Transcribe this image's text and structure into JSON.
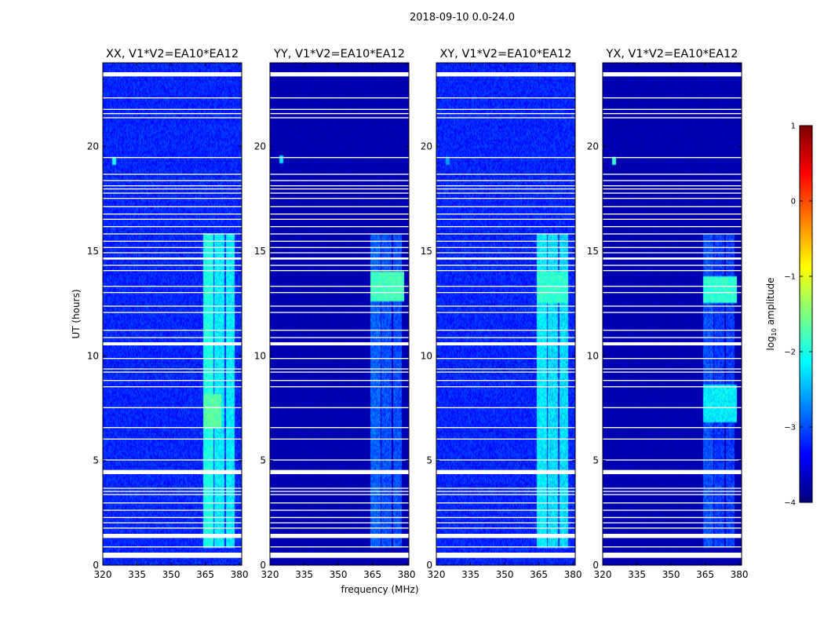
{
  "chart_data": {
    "type": "heatmap",
    "suptitle": "2018-09-10 0.0-24.0",
    "xlabel": "frequency (MHz)",
    "ylabel": "UT (hours)",
    "xlim": [
      320,
      381
    ],
    "ylim": [
      0,
      24
    ],
    "xticks": [
      320,
      335,
      350,
      365,
      380
    ],
    "yticks": [
      0,
      5,
      10,
      15,
      20
    ],
    "colorbar": {
      "label": "log10 amplitude",
      "label_base": "log",
      "label_sub": "10",
      "label_rest": " amplitude",
      "range": [
        -4,
        1
      ],
      "ticks": [
        -4,
        -3,
        -2,
        -1,
        0,
        1
      ],
      "tick_labels": [
        "−4",
        "−3",
        "−2",
        "−1",
        "0",
        "1"
      ],
      "colormap": "jet"
    },
    "flagged_gaps_hours": [
      [
        0.35,
        0.6
      ],
      [
        0.85,
        0.9
      ],
      [
        1.3,
        1.5
      ],
      [
        1.75,
        1.8
      ],
      [
        2.0,
        2.05
      ],
      [
        2.25,
        2.3
      ],
      [
        2.6,
        2.65
      ],
      [
        2.95,
        3.0
      ],
      [
        3.35,
        3.4
      ],
      [
        3.5,
        3.55
      ],
      [
        3.65,
        3.7
      ],
      [
        4.35,
        4.55
      ],
      [
        5.0,
        5.05
      ],
      [
        6.0,
        6.05
      ],
      [
        6.55,
        6.6
      ],
      [
        7.5,
        7.55
      ],
      [
        8.5,
        8.55
      ],
      [
        8.8,
        8.85
      ],
      [
        9.2,
        9.25
      ],
      [
        9.35,
        9.4
      ],
      [
        9.85,
        9.9
      ],
      [
        10.5,
        10.65
      ],
      [
        10.85,
        10.9
      ],
      [
        11.2,
        11.25
      ],
      [
        12.05,
        12.1
      ],
      [
        12.35,
        12.4
      ],
      [
        13.0,
        13.05
      ],
      [
        13.3,
        13.35
      ],
      [
        14.05,
        14.1
      ],
      [
        14.3,
        14.35
      ],
      [
        14.6,
        14.7
      ],
      [
        14.9,
        14.95
      ],
      [
        15.15,
        15.2
      ],
      [
        15.45,
        15.5
      ],
      [
        15.8,
        15.85
      ],
      [
        16.15,
        16.2
      ],
      [
        16.5,
        16.55
      ],
      [
        16.75,
        16.8
      ],
      [
        17.1,
        17.15
      ],
      [
        17.5,
        17.55
      ],
      [
        17.75,
        17.8
      ],
      [
        17.95,
        18.0
      ],
      [
        18.1,
        18.15
      ],
      [
        18.35,
        18.4
      ],
      [
        18.65,
        18.7
      ],
      [
        19.45,
        19.5
      ],
      [
        21.35,
        21.4
      ],
      [
        21.55,
        21.6
      ],
      [
        21.75,
        21.8
      ],
      [
        22.3,
        22.35
      ],
      [
        23.35,
        23.55
      ]
    ],
    "panels": [
      {
        "title": "XX, V1*V2=EA10*EA12",
        "background": -3.2,
        "noise": 0.22,
        "hot_spot": {
          "freq": 325,
          "hour": 19.3,
          "value": -2.0
        },
        "bands": [
          {
            "f0": 364,
            "f1": 368.5,
            "h0": 0.8,
            "h1": 15.8,
            "value": -2.0
          },
          {
            "f0": 369,
            "f1": 373.5,
            "h0": 0.8,
            "h1": 15.8,
            "value": -2.2
          },
          {
            "f0": 374,
            "f1": 378,
            "h0": 0.8,
            "h1": 15.8,
            "value": -2.2
          },
          {
            "f0": 364,
            "f1": 372,
            "h0": 6.5,
            "h1": 8.2,
            "value": -1.7
          }
        ]
      },
      {
        "title": "YY, V1*V2=EA10*EA12",
        "background": -3.75,
        "noise": 0.08,
        "hot_spot": {
          "freq": 325,
          "hour": 19.4,
          "value": -2.3
        },
        "bands": [
          {
            "f0": 364,
            "f1": 368.5,
            "h0": 0.8,
            "h1": 15.8,
            "value": -2.9
          },
          {
            "f0": 369,
            "f1": 373.5,
            "h0": 0.8,
            "h1": 15.8,
            "value": -3.0
          },
          {
            "f0": 374,
            "f1": 378,
            "h0": 0.8,
            "h1": 15.8,
            "value": -3.0
          },
          {
            "f0": 364,
            "f1": 379,
            "h0": 12.6,
            "h1": 14.0,
            "value": -1.8
          }
        ]
      },
      {
        "title": "XY, V1*V2=EA10*EA12",
        "background": -3.2,
        "noise": 0.22,
        "hot_spot": {
          "freq": 325,
          "hour": 19.3,
          "value": -2.6
        },
        "bands": [
          {
            "f0": 364,
            "f1": 368.5,
            "h0": 0.8,
            "h1": 15.8,
            "value": -2.2
          },
          {
            "f0": 369,
            "f1": 373.5,
            "h0": 0.8,
            "h1": 15.8,
            "value": -2.3
          },
          {
            "f0": 374,
            "f1": 378,
            "h0": 0.8,
            "h1": 15.8,
            "value": -2.3
          },
          {
            "f0": 364,
            "f1": 378,
            "h0": 12.5,
            "h1": 14.0,
            "value": -1.9
          }
        ]
      },
      {
        "title": "YX, V1*V2=EA10*EA12",
        "background": -3.75,
        "noise": 0.08,
        "hot_spot": {
          "freq": 325,
          "hour": 19.3,
          "value": -1.9
        },
        "bands": [
          {
            "f0": 364,
            "f1": 368.5,
            "h0": 0.8,
            "h1": 15.8,
            "value": -3.0
          },
          {
            "f0": 369,
            "f1": 373.5,
            "h0": 0.8,
            "h1": 15.8,
            "value": -3.1
          },
          {
            "f0": 374,
            "f1": 378,
            "h0": 0.8,
            "h1": 15.8,
            "value": -3.1
          },
          {
            "f0": 364,
            "f1": 379,
            "h0": 12.5,
            "h1": 13.8,
            "value": -1.9
          },
          {
            "f0": 364,
            "f1": 379,
            "h0": 6.8,
            "h1": 8.6,
            "value": -2.2
          }
        ]
      }
    ]
  }
}
